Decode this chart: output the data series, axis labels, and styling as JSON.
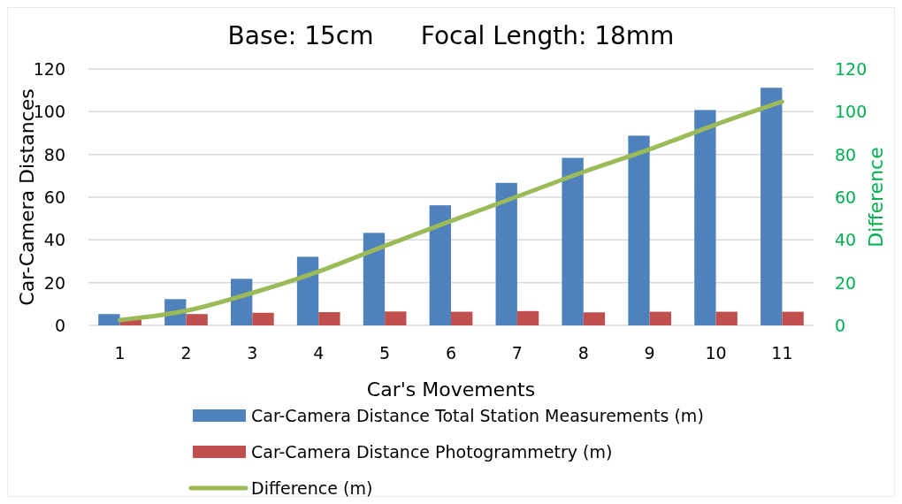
{
  "chart_data": {
    "type": "bar",
    "title": "Base: 15cm      Focal Length: 18mm",
    "xlabel": "Car's Movements",
    "ylabel": "Car-Camera Distances",
    "y2label": "Difference",
    "categories": [
      "1",
      "2",
      "3",
      "4",
      "5",
      "6",
      "7",
      "8",
      "9",
      "10",
      "11"
    ],
    "series": [
      {
        "name": "Car-Camera Distance Total Station Measurements (m)",
        "color": "#4f81bd",
        "values": [
          5.3,
          12.3,
          21.8,
          32.1,
          43.3,
          56.2,
          66.7,
          78.4,
          88.8,
          100.8,
          111.2
        ]
      },
      {
        "name": "Car-Camera Distance Photogrammetry (m)",
        "color": "#c0504d",
        "values": [
          3,
          5.3,
          5.9,
          6.2,
          6.5,
          6.4,
          6.7,
          6.1,
          6.4,
          6.4,
          6.4
        ]
      },
      {
        "name": "Difference (m)",
        "type": "line",
        "axis": "y2",
        "color": "#9bbb59",
        "values": [
          2.5,
          6.8,
          15.2,
          25.2,
          37.2,
          48.9,
          60.3,
          71.8,
          82.4,
          94,
          104.7
        ]
      }
    ],
    "ylim": [
      0,
      120
    ],
    "yticks": [
      0,
      20,
      40,
      60,
      80,
      100,
      120
    ],
    "y2lim": [
      0,
      120
    ],
    "y2ticks": [
      0,
      20,
      40,
      60,
      80,
      100,
      120
    ],
    "grid": "y",
    "legend": "bottom"
  }
}
